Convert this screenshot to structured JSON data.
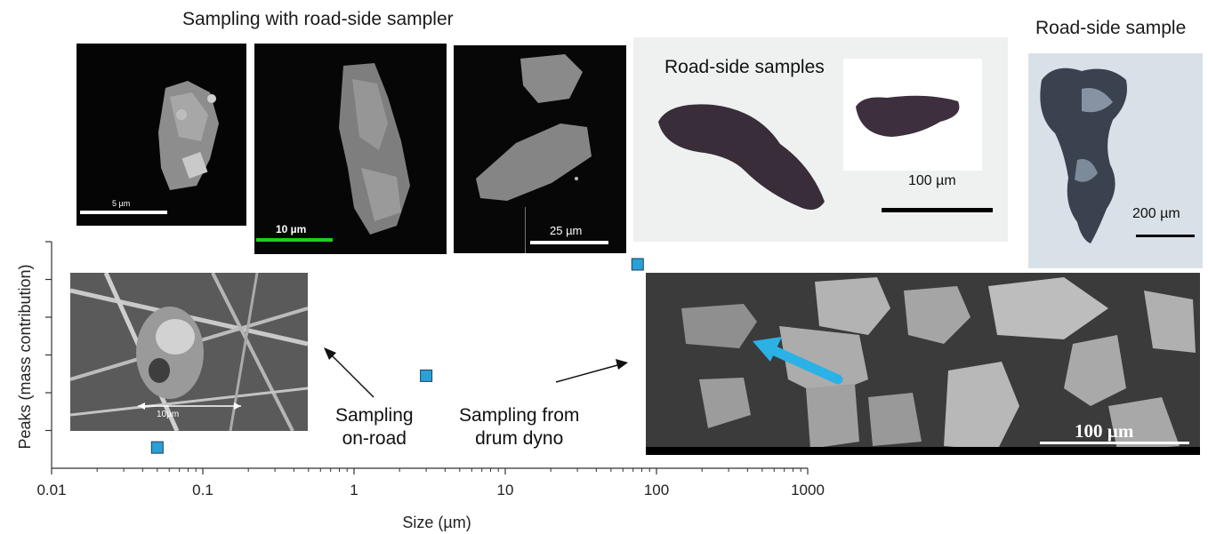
{
  "captions": {
    "roadside_sampler": "Sampling with road-side sampler",
    "roadside_samples": "Road-side samples",
    "roadside_sample": "Road-side sample"
  },
  "scale_labels": {
    "p1": "5 µm",
    "p2": "10 µm",
    "p3": "25 µm",
    "p4": "100 µm",
    "p5": "200 µm",
    "p6": "10µm",
    "p7": "100 µm"
  },
  "annotations": {
    "on_road": "Sampling\non-road",
    "drum": "Sampling from\ndrum dyno"
  },
  "colors": {
    "marker": "#2aa0d8",
    "arrow_blue": "#2ab2e6",
    "scale_green": "#22cc22"
  },
  "chart_data": {
    "type": "scatter",
    "xlabel": "Size (µm)",
    "ylabel": "Peaks (mass contribution)",
    "x_scale": "log",
    "xlim": [
      0.01,
      1000
    ],
    "x_ticks": [
      0.01,
      0.1,
      1,
      10,
      100,
      1000
    ],
    "x_tick_labels": [
      "0.01",
      "0.1",
      "1",
      "10",
      "100",
      "1000"
    ],
    "ylim": [
      0,
      6
    ],
    "y_ticks": [
      1,
      2,
      3,
      4,
      5,
      6
    ],
    "y_tick_labels": [
      "",
      "",
      "",
      "",
      "",
      ""
    ],
    "grid": false,
    "series": [
      {
        "points": [
          {
            "x": 0.05,
            "y": 0.55
          },
          {
            "x": 3,
            "y": 2.45
          },
          {
            "x": 75,
            "y": 5.4
          }
        ]
      }
    ]
  }
}
